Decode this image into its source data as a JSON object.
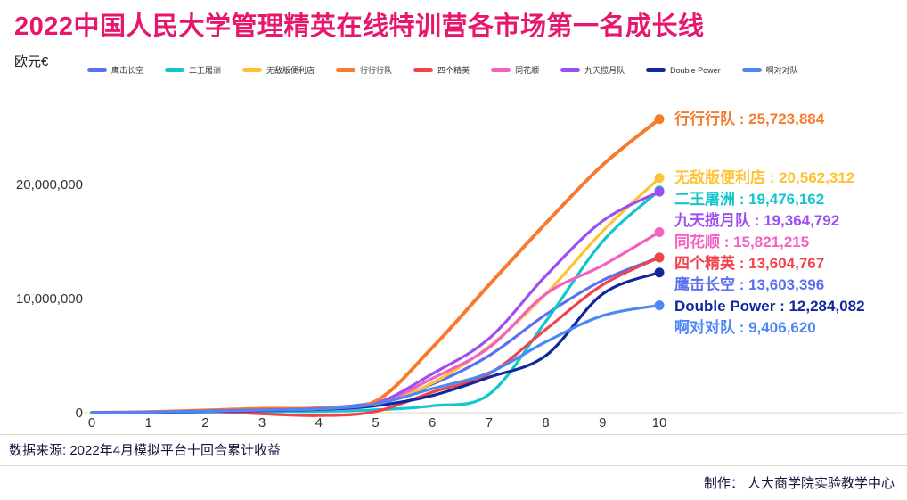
{
  "title": "2022中国人民大学管理精英在线特训营各市场第一名成长线",
  "y_axis_unit": "欧元€",
  "colors": {
    "title": "#e6176d",
    "axis_line": "#d4d4d4",
    "tick_text": "#333333"
  },
  "footer": {
    "source": "数据来源: 2022年4月模拟平台十回合累计收益",
    "credit": "制作： 人大商学院实验教学中心"
  },
  "chart_data": {
    "type": "line",
    "x": [
      0,
      1,
      2,
      3,
      4,
      5,
      6,
      7,
      8,
      9,
      10
    ],
    "xlabel": "",
    "ylabel": "欧元€",
    "ylim": [
      -500000,
      27000000
    ],
    "yticks": [
      0,
      10000000,
      20000000
    ],
    "ytick_labels": [
      "0",
      "10,000,000",
      "20,000,000"
    ],
    "grid": false,
    "legend_position": "top",
    "series": [
      {
        "name": "鹰击长空",
        "color": "#5b6ff0",
        "final_value": 13603396,
        "final_label": "13,603,396",
        "values": [
          0,
          70000,
          180000,
          300000,
          400000,
          900000,
          2500000,
          5000000,
          8600000,
          11600000,
          13603396
        ]
      },
      {
        "name": "二王屠洲",
        "color": "#12c6cd",
        "final_value": 19476162,
        "final_label": "19,476,162",
        "values": [
          0,
          20000,
          60000,
          100000,
          120000,
          250000,
          600000,
          1600000,
          8000000,
          15000000,
          19476162
        ]
      },
      {
        "name": "无敌版便利店",
        "color": "#ffc233",
        "final_value": 20562312,
        "final_label": "20,562,312",
        "values": [
          0,
          40000,
          150000,
          250000,
          300000,
          700000,
          2600000,
          5800000,
          10400000,
          15900000,
          20562312
        ]
      },
      {
        "name": "行行行队",
        "color": "#f87a2c",
        "final_value": 25723884,
        "final_label": "25,723,884",
        "values": [
          0,
          60000,
          200000,
          350000,
          400000,
          1000000,
          5700000,
          11200000,
          16600000,
          21700000,
          25723884
        ]
      },
      {
        "name": "四个精英",
        "color": "#f2434b",
        "final_value": 13604767,
        "final_label": "13,604,767",
        "values": [
          0,
          60000,
          120000,
          -100000,
          -250000,
          100000,
          1800000,
          3400000,
          7300000,
          11200000,
          13604767
        ]
      },
      {
        "name": "同花顺",
        "color": "#f45fc1",
        "final_value": 15821215,
        "final_label": "15,821,215",
        "values": [
          0,
          40000,
          120000,
          200000,
          300000,
          700000,
          3000000,
          5700000,
          10400000,
          12900000,
          15821215
        ]
      },
      {
        "name": "九天揽月队",
        "color": "#9b4ff0",
        "final_value": 19364792,
        "final_label": "19,364,792",
        "values": [
          0,
          50000,
          150000,
          250000,
          350000,
          800000,
          3400000,
          6500000,
          12000000,
          16800000,
          19364792
        ]
      },
      {
        "name": "Double Power",
        "color": "#12269e",
        "final_value": 12284082,
        "final_label": "12,284,082",
        "values": [
          0,
          30000,
          90000,
          180000,
          280000,
          600000,
          1500000,
          3100000,
          5000000,
          10400000,
          12284082
        ]
      },
      {
        "name": "啊对对队",
        "color": "#4d87f5",
        "final_value": 9406620,
        "final_label": "9,406,620",
        "values": [
          0,
          50000,
          120000,
          220000,
          320000,
          750000,
          2100000,
          3500000,
          6200000,
          8500000,
          9406620
        ]
      }
    ]
  }
}
